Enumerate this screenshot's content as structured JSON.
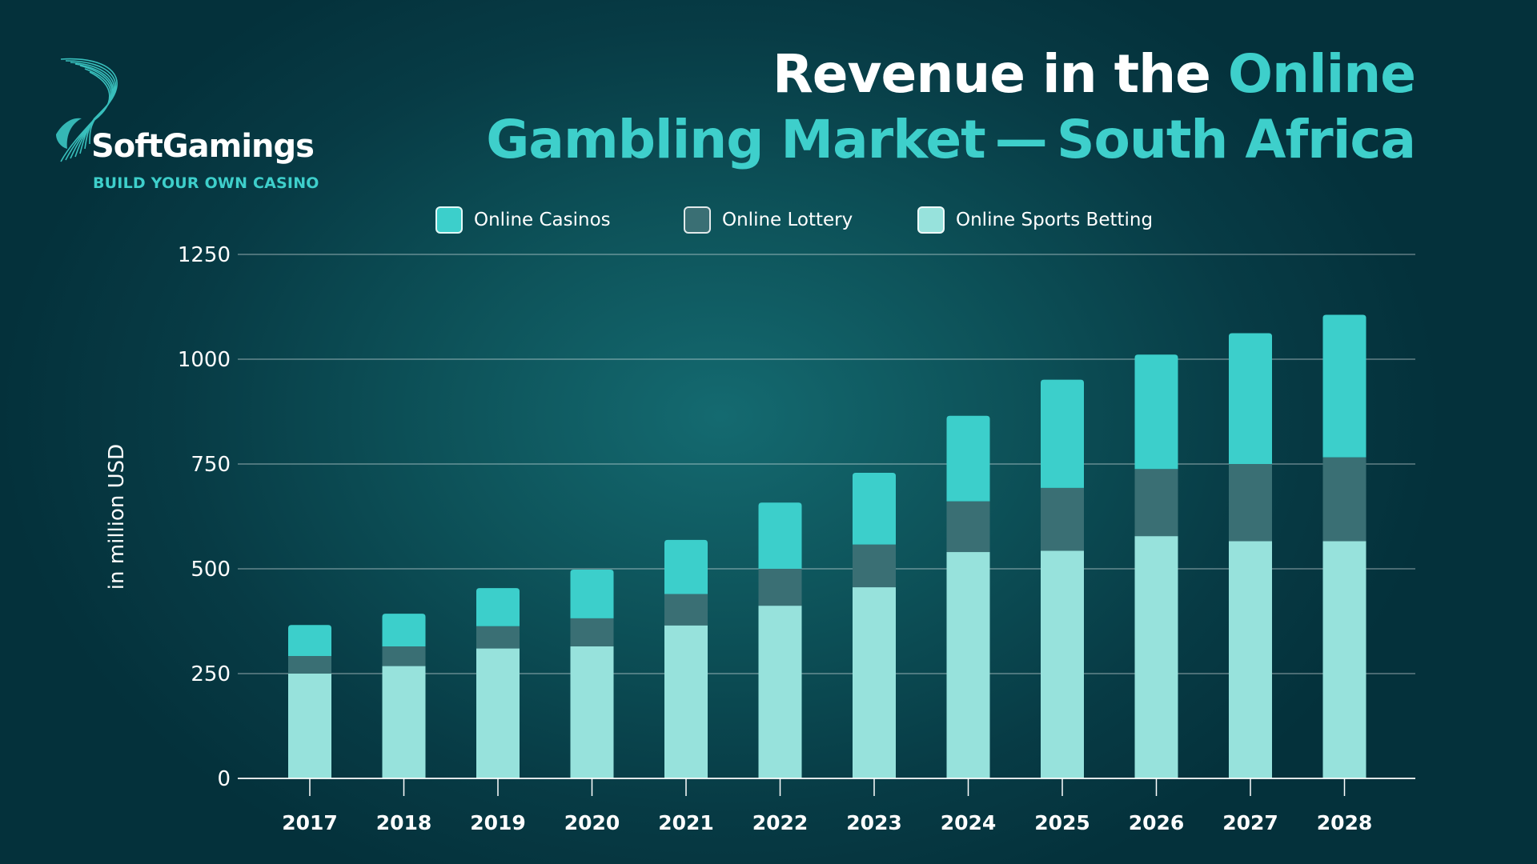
{
  "brand": {
    "name": "SoftGamings",
    "tagline": "BUILD YOUR OWN CASINO"
  },
  "title": {
    "part1": "Revenue in the ",
    "part2": "Online",
    "part3": "Gambling Market — South Africa"
  },
  "colors": {
    "casinos": "#3ccfcb",
    "lottery": "#3a6f74",
    "sports": "#97e2dc",
    "title_accent": "#3ecfcb"
  },
  "chart_data": {
    "type": "bar",
    "stacked": true,
    "categories": [
      "2017",
      "2018",
      "2019",
      "2020",
      "2021",
      "2022",
      "2023",
      "2024",
      "2025",
      "2026",
      "2027",
      "2028"
    ],
    "series": [
      {
        "name": "Online Sports Betting",
        "values": [
          250,
          268,
          310,
          315,
          365,
          412,
          456,
          540,
          543,
          578,
          566,
          566
        ]
      },
      {
        "name": "Online Lottery",
        "values": [
          42,
          47,
          53,
          67,
          75,
          88,
          102,
          121,
          150,
          160,
          184,
          200
        ]
      },
      {
        "name": "Online Casinos",
        "values": [
          74,
          78,
          91,
          116,
          129,
          158,
          171,
          204,
          258,
          273,
          312,
          340
        ]
      }
    ],
    "legend_order": [
      "Online Casinos",
      "Online Lottery",
      "Online Sports Betting"
    ],
    "ylabel": "in million USD",
    "xlabel": "",
    "ylim": [
      0,
      1250
    ],
    "yticks": [
      "0",
      "250",
      "500",
      "750",
      "1000",
      "1250"
    ],
    "grid": true,
    "legend_position": "top"
  }
}
